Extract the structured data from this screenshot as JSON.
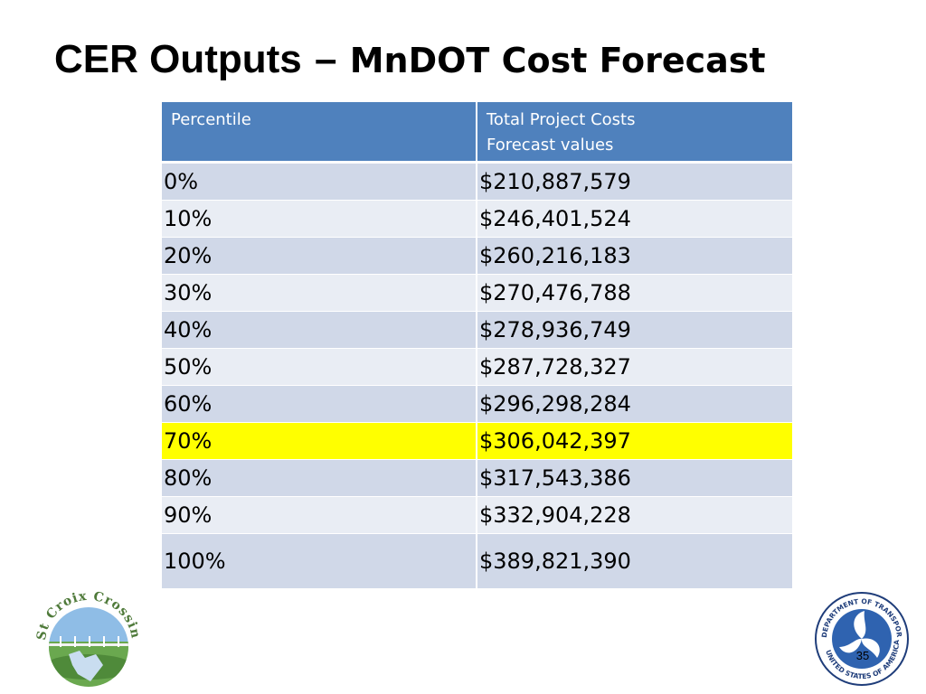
{
  "slide": {
    "title_main": "CER Outputs",
    "title_dash": "–",
    "title_sub": "MnDOT Cost Forecast",
    "page_number": "35"
  },
  "table": {
    "headers": [
      "Percentile",
      "Total Project Costs",
      "Forecast values"
    ],
    "rows": [
      {
        "percentile": "0%",
        "cost": "$210,887,579"
      },
      {
        "percentile": "10%",
        "cost": "$246,401,524"
      },
      {
        "percentile": "20%",
        "cost": "$260,216,183"
      },
      {
        "percentile": "30%",
        "cost": "$270,476,788"
      },
      {
        "percentile": "40%",
        "cost": "$278,936,749"
      },
      {
        "percentile": "50%",
        "cost": "$287,728,327"
      },
      {
        "percentile": "60%",
        "cost": "$296,298,284"
      },
      {
        "percentile": "70%",
        "cost": "$306,042,397"
      },
      {
        "percentile": "80%",
        "cost": "$317,543,386"
      },
      {
        "percentile": "90%",
        "cost": "$332,904,228"
      },
      {
        "percentile": "100%",
        "cost": "$389,821,390"
      }
    ],
    "highlighted_row": "70%",
    "colors": {
      "header": "#4f81bd",
      "row_odd": "#d0d8e8",
      "row_even": "#e9edf4",
      "highlight": "#ffff00"
    }
  },
  "logos": {
    "left_text": "St Croix Crossing",
    "right_text_top": "DEPARTMENT OF TRANSPORTATION",
    "right_text_bottom": "UNITED STATES OF AMERICA"
  }
}
